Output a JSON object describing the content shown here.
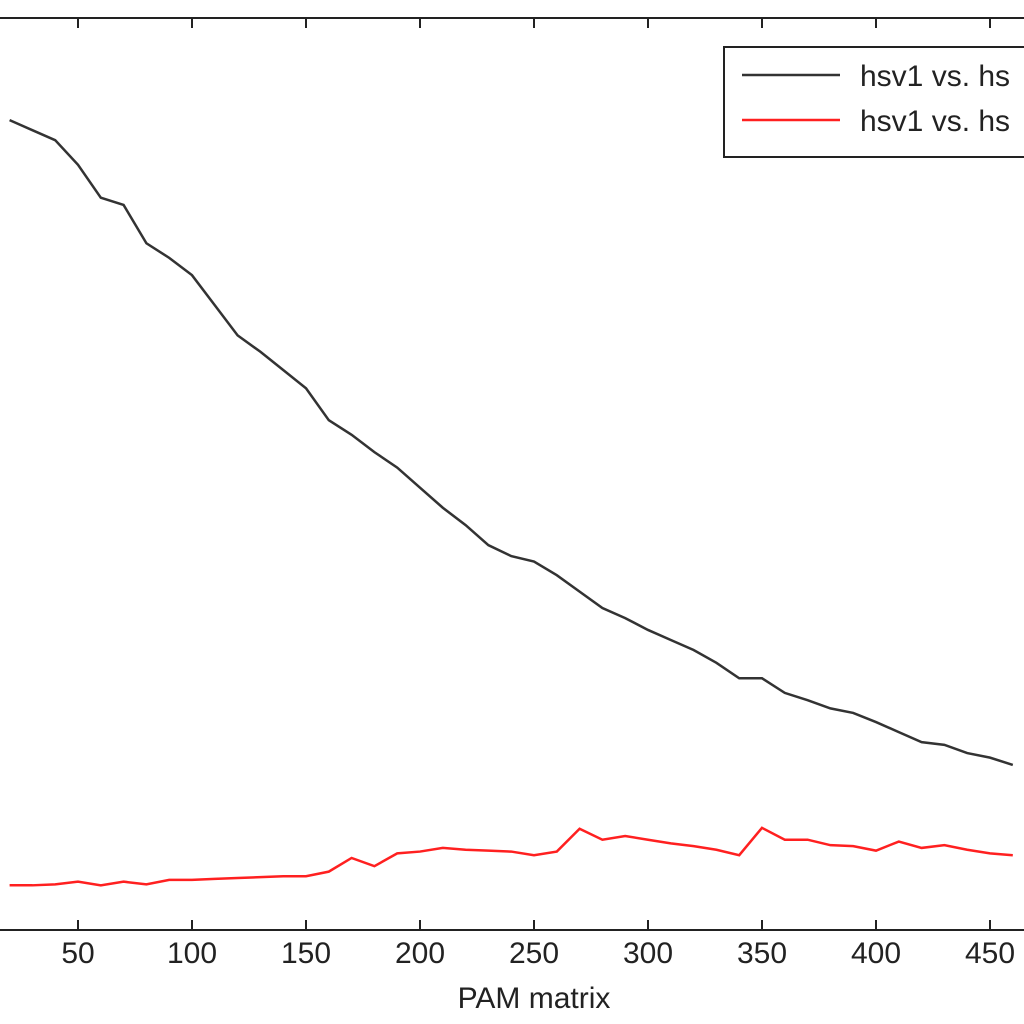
{
  "chart_data": {
    "type": "line",
    "x_label": "PAM matrix",
    "x": [
      20,
      30,
      40,
      50,
      60,
      70,
      80,
      90,
      100,
      110,
      120,
      130,
      140,
      150,
      160,
      170,
      180,
      190,
      200,
      210,
      220,
      230,
      240,
      250,
      260,
      270,
      280,
      290,
      300,
      310,
      320,
      330,
      340,
      350,
      360,
      370,
      380,
      390,
      400,
      410,
      420,
      430,
      440,
      450,
      460
    ],
    "series": [
      {
        "name": "hsv1 vs. hs",
        "color": "#333333",
        "values": [
          88.8,
          87.7,
          86.6,
          83.9,
          80.3,
          79.5,
          75.3,
          73.7,
          71.8,
          68.5,
          65.2,
          63.4,
          61.4,
          59.4,
          55.9,
          54.3,
          52.4,
          50.7,
          48.5,
          46.3,
          44.4,
          42.2,
          41.0,
          40.4,
          38.9,
          37.1,
          35.3,
          34.2,
          32.9,
          31.8,
          30.7,
          29.3,
          27.6,
          27.6,
          26.0,
          25.2,
          24.3,
          23.8,
          22.8,
          21.7,
          20.6,
          20.3,
          19.4,
          18.9,
          18.1
        ]
      },
      {
        "name": "hsv1 vs. hs",
        "color": "#ff2020",
        "values": [
          4.9,
          4.9,
          5.0,
          5.3,
          4.9,
          5.3,
          5.0,
          5.5,
          5.5,
          5.6,
          5.7,
          5.8,
          5.9,
          5.9,
          6.4,
          7.9,
          7.0,
          8.4,
          8.6,
          9.0,
          8.8,
          8.7,
          8.6,
          8.2,
          8.6,
          11.1,
          9.9,
          10.3,
          9.9,
          9.5,
          9.2,
          8.8,
          8.2,
          11.2,
          9.9,
          9.9,
          9.3,
          9.2,
          8.7,
          9.7,
          9.0,
          9.3,
          8.8,
          8.4,
          8.2
        ]
      }
    ],
    "xlim": [
      0,
      500
    ],
    "xticks": [
      50,
      100,
      150,
      200,
      250,
      300,
      350,
      400,
      450
    ],
    "ylim": [
      0,
      100
    ],
    "legend": "top-right"
  }
}
